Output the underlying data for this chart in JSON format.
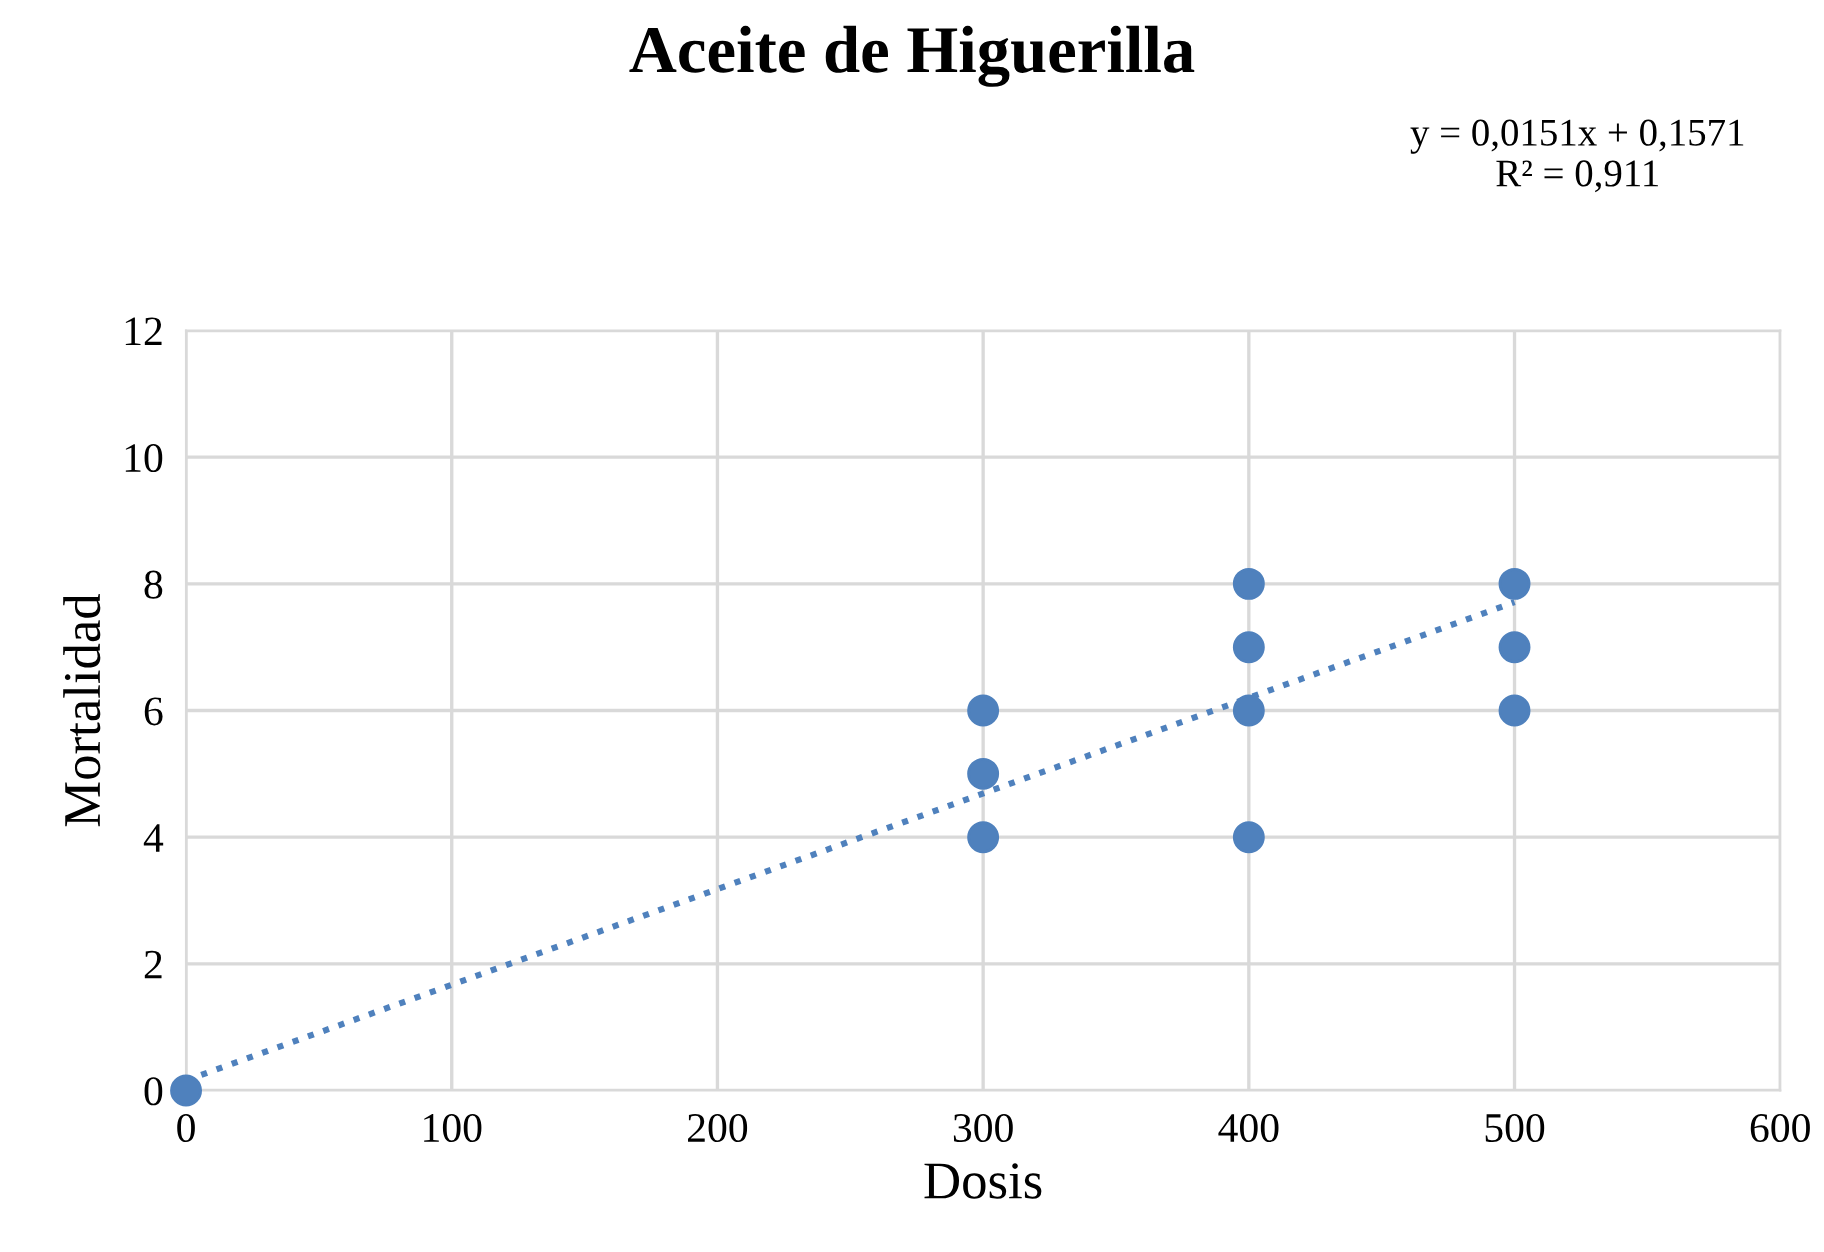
{
  "chart_data": {
    "type": "scatter",
    "title": "Aceite de Higuerilla",
    "xlabel": "Dosis",
    "ylabel": "Mortalidad",
    "annotations": [
      "y = 0,0151x + 0,1571\nR² = 0,911"
    ],
    "series": [
      {
        "type": "scatter",
        "color": "#4f81bd",
        "marker": "circle",
        "x": [
          0,
          300,
          300,
          300,
          400,
          400,
          400,
          400,
          500,
          500,
          500
        ],
        "values": [
          0,
          6,
          5,
          4,
          8,
          7,
          6,
          4,
          8,
          7,
          6
        ]
      },
      {
        "type": "line",
        "color": "#4f81bd",
        "line_style": "dotted",
        "marker": "none",
        "x": [
          0,
          500
        ],
        "values": [
          0.16,
          7.71
        ]
      }
    ],
    "xlim": [
      0,
      600
    ],
    "xticks": [
      0,
      100,
      200,
      300,
      400,
      500,
      600
    ],
    "ylim": [
      0,
      12
    ],
    "yticks": [
      0,
      2,
      4,
      6,
      8,
      10,
      12
    ],
    "grid": true,
    "legend": false
  }
}
